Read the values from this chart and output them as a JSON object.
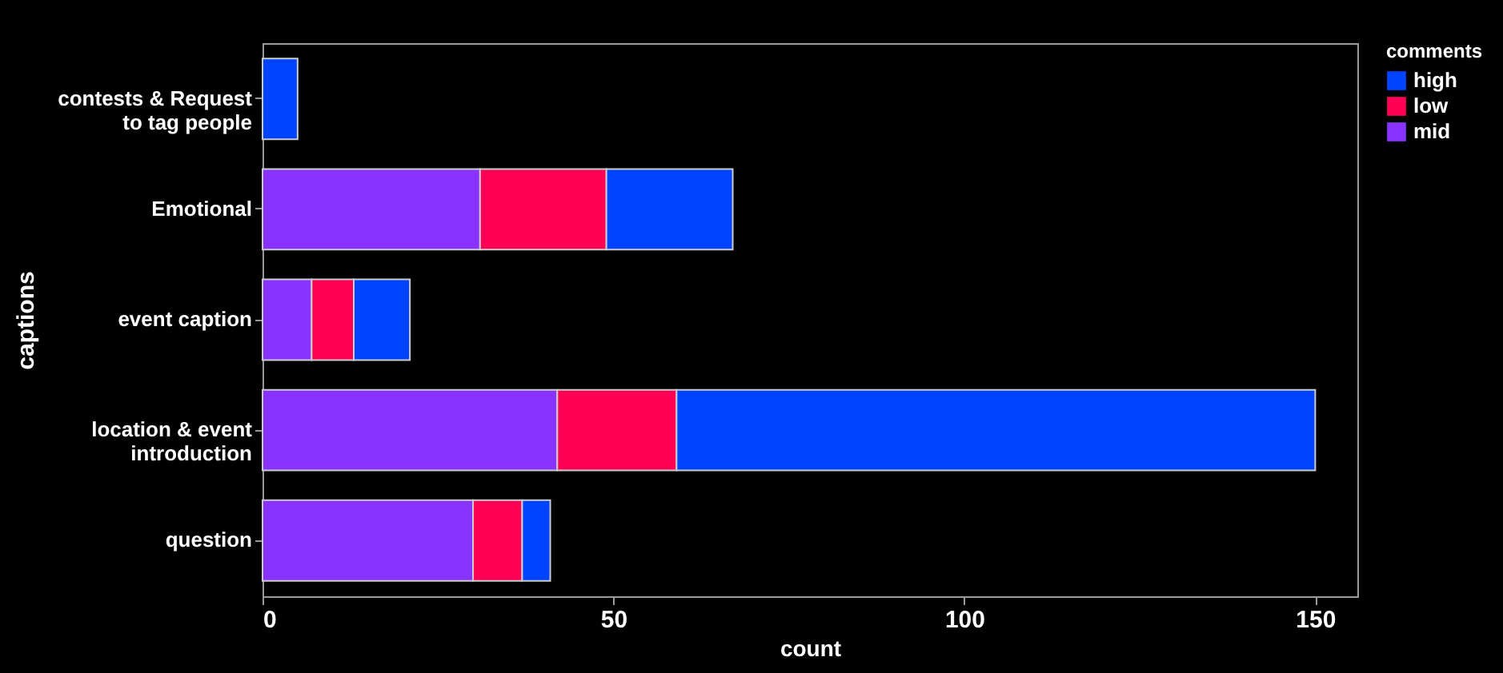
{
  "chart_data": {
    "type": "bar",
    "orientation": "horizontal",
    "stacked": true,
    "xlabel": "count",
    "ylabel": "captions",
    "legend_title": "comments",
    "legend": "top right",
    "categories": [
      "contests & Request to tag people",
      "Emotional",
      "event caption",
      "location & event introduction",
      "question"
    ],
    "series": [
      {
        "name": "mid",
        "color": "#8833ff",
        "values": [
          null,
          31,
          7,
          42,
          30
        ]
      },
      {
        "name": "low",
        "color": "#ff0055",
        "values": [
          null,
          18,
          6,
          17,
          7
        ]
      },
      {
        "name": "high",
        "color": "#0044ff",
        "values": [
          5,
          18,
          8,
          91,
          4
        ]
      }
    ],
    "xlim": [
      0,
      156
    ],
    "xticks": [
      0,
      50,
      100,
      150
    ],
    "grid": false
  }
}
